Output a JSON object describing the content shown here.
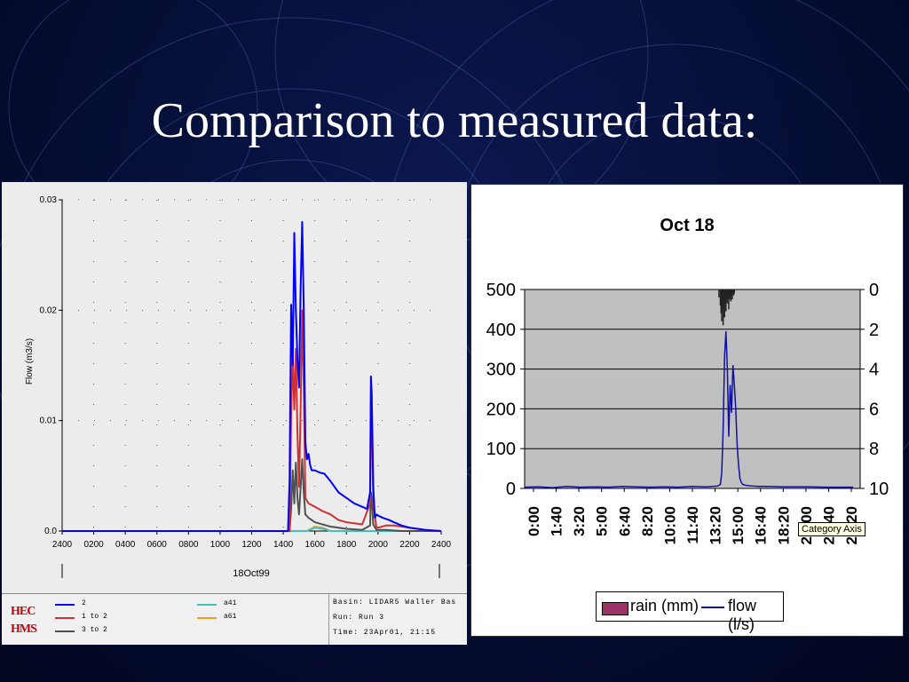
{
  "slide": {
    "title": "Comparison to measured data:",
    "background": "#06103a"
  },
  "chart_data": [
    {
      "type": "line",
      "title": "",
      "xlabel": "18Oct99",
      "ylabel": "Flow (m3/s)",
      "ylim": [
        0,
        0.03
      ],
      "yticks": [
        "0.03",
        "0.02",
        "0.01",
        "0.0"
      ],
      "ytick_values": [
        0.03,
        0.02,
        0.01,
        0.0
      ],
      "xticks": [
        "2400",
        "0200",
        "0400",
        "0600",
        "0800",
        "1000",
        "1200",
        "1400",
        "1600",
        "1800",
        "2000",
        "2200",
        "2400"
      ],
      "grid": true,
      "x_unit": "hours since 00:00 18Oct99",
      "series": [
        {
          "name": "2",
          "color": "#0000ff",
          "x": [
            0,
            14.3,
            14.4,
            14.5,
            14.6,
            14.7,
            14.8,
            14.9,
            15.0,
            15.1,
            15.2,
            15.3,
            15.4,
            15.5,
            15.6,
            15.7,
            15.8,
            16.0,
            16.3,
            16.6,
            17.0,
            17.5,
            18.0,
            18.5,
            19.0,
            19.3,
            19.5,
            19.55,
            19.6,
            19.7,
            19.8,
            19.9,
            20.0,
            20.3,
            20.7,
            21.0,
            21.5,
            22.0,
            22.5,
            23.0,
            24.0
          ],
          "y": [
            0,
            0,
            0.0045,
            0.0205,
            0.015,
            0.027,
            0.02,
            0.0155,
            0.013,
            0.022,
            0.028,
            0.02,
            0.008,
            0.0065,
            0.007,
            0.006,
            0.0055,
            0.0055,
            0.0053,
            0.0052,
            0.0045,
            0.0035,
            0.003,
            0.0025,
            0.0022,
            0.002,
            0.0035,
            0.014,
            0.0125,
            0.004,
            0.0012,
            0.0015,
            0.0014,
            0.0012,
            0.001,
            0.0008,
            0.0005,
            0.0003,
            0.0002,
            0.0001,
            0.0
          ]
        },
        {
          "name": "1 to 2",
          "color": "#cc3030",
          "x": [
            0,
            14.4,
            14.5,
            14.6,
            14.7,
            14.8,
            14.9,
            15.0,
            15.1,
            15.2,
            15.3,
            15.4,
            15.6,
            16.0,
            16.5,
            17.0,
            17.5,
            18.0,
            19.0,
            19.5,
            19.55,
            19.6,
            19.7,
            19.9,
            20.0,
            20.5,
            21.0,
            22.0,
            23.0,
            24.0
          ],
          "y": [
            0,
            0,
            0.0105,
            0.016,
            0.011,
            0.0165,
            0.0088,
            0.004,
            0.011,
            0.02,
            0.013,
            0.003,
            0.0025,
            0.0022,
            0.0018,
            0.0015,
            0.001,
            0.0008,
            0.0006,
            0.0025,
            0.012,
            0.011,
            0.0025,
            0.0003,
            0.0003,
            0.0005,
            0.0005,
            0.0003,
            0.0001,
            0.0
          ]
        },
        {
          "name": "3 to 2",
          "color": "#505050",
          "x": [
            0,
            14.4,
            14.5,
            14.6,
            14.7,
            14.8,
            14.9,
            15.0,
            15.1,
            15.2,
            15.3,
            15.4,
            15.6,
            16.0,
            17.0,
            18.0,
            19.0,
            19.5,
            19.55,
            19.6,
            19.7,
            19.9,
            20.5,
            21.5,
            24.0
          ],
          "y": [
            0,
            0,
            0.002,
            0.0055,
            0.0025,
            0.0062,
            0.003,
            0.0015,
            0.004,
            0.0065,
            0.0035,
            0.0015,
            0.0012,
            0.0008,
            0.0004,
            0.0002,
            0.0001,
            0.0005,
            0.0035,
            0.003,
            0.0006,
            0.0001,
            0.0001,
            0.0,
            0.0
          ]
        },
        {
          "name": "a41",
          "color": "#40c0c0",
          "x": [
            0,
            15.5,
            16.0,
            16.5,
            17.0,
            24.0
          ],
          "y": [
            0,
            0,
            0.0003,
            0.0002,
            0,
            0
          ]
        },
        {
          "name": "a61",
          "color": "#f0a020",
          "x": [
            0,
            15.5,
            16.0,
            16.5,
            17.0,
            24.0
          ],
          "y": [
            0,
            0,
            0.0004,
            0.0003,
            0,
            0
          ]
        }
      ],
      "legend": {
        "logo": [
          "HEC",
          "HMS"
        ],
        "items": [
          {
            "label": "2",
            "color": "#0000ff"
          },
          {
            "label": "1 to 2",
            "color": "#cc3030"
          },
          {
            "label": "3 to 2",
            "color": "#505050"
          },
          {
            "label": "a41",
            "color": "#40c0c0"
          },
          {
            "label": "a61",
            "color": "#f0a020"
          }
        ],
        "basin": "Basin: LIDAR5 Waller Bas",
        "run": "Run:   Run 3",
        "time": "Time:  23Apr01, 21:15"
      }
    },
    {
      "type": "line",
      "title": "Oct 18",
      "xlabel": "",
      "ylabel": "",
      "ylim": [
        0,
        500
      ],
      "y2lim": [
        10,
        0
      ],
      "yticks": [
        "500",
        "400",
        "300",
        "200",
        "100",
        "0"
      ],
      "y2ticks": [
        "0",
        "2",
        "4",
        "6",
        "8",
        "10"
      ],
      "y2_inverted": true,
      "xticks": [
        "0:00",
        "1:40",
        "3:20",
        "5:00",
        "6:40",
        "8:20",
        "10:00",
        "11:40",
        "13:20",
        "15:00",
        "16:40",
        "18:20",
        "20:00",
        "21:40",
        "23:20"
      ],
      "grid": true,
      "x_unit": "hours since 0:00",
      "legend_position": "bottom",
      "series": [
        {
          "name": "flow (l/s)",
          "color": "#1010a0",
          "axis": "left",
          "x": [
            0,
            1,
            2,
            3,
            4,
            5,
            6,
            7,
            8,
            9,
            10,
            11,
            12,
            13,
            13.8,
            14.0,
            14.1,
            14.2,
            14.3,
            14.4,
            14.5,
            14.6,
            14.7,
            14.8,
            14.9,
            15.0,
            15.1,
            15.2,
            15.3,
            15.4,
            15.5,
            15.6,
            15.8,
            16.0,
            16.3,
            16.7,
            17.5,
            18.5,
            19.5,
            20.5,
            21.5,
            22.5,
            23.5
          ],
          "y": [
            3,
            4,
            2,
            5,
            3,
            4,
            3,
            5,
            4,
            3,
            4,
            3,
            5,
            4,
            6,
            10,
            40,
            150,
            330,
            395,
            300,
            130,
            260,
            190,
            310,
            260,
            200,
            110,
            60,
            25,
            15,
            10,
            8,
            7,
            6,
            5,
            5,
            4,
            4,
            4,
            3,
            3,
            3
          ]
        },
        {
          "name": "rain (mm)",
          "color": "#9b3366",
          "axis": "right",
          "x": [
            13.9,
            14.0,
            14.05,
            14.1,
            14.15,
            14.2,
            14.25,
            14.3,
            14.35,
            14.4,
            14.45,
            14.5,
            14.55,
            14.6,
            14.65,
            14.7,
            14.75,
            14.8,
            14.85,
            14.9,
            14.95,
            15.0
          ],
          "y": [
            0.4,
            0.8,
            1.2,
            1.6,
            1.0,
            1.8,
            0.9,
            1.4,
            0.6,
            1.1,
            0.5,
            0.7,
            0.4,
            1.0,
            0.5,
            0.3,
            0.6,
            0.3,
            0.5,
            0.2,
            0.3,
            0.2
          ]
        }
      ],
      "tooltip": "Category Axis",
      "legend": {
        "rain_label": "rain (mm)",
        "flow_label": "flow (l/s)",
        "rain_color": "#9b3366",
        "flow_color": "#1010a0"
      }
    }
  ]
}
